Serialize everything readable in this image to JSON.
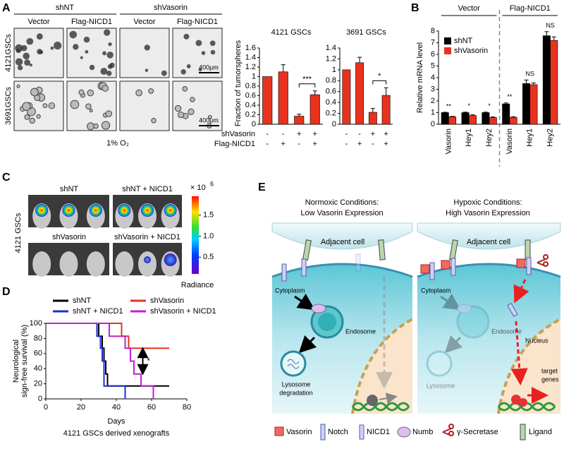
{
  "panel_labels": [
    "A",
    "B",
    "C",
    "D",
    "E"
  ],
  "panel_a": {
    "groups": [
      "shNT",
      "shVasorin"
    ],
    "columns": [
      "Vector",
      "Flag-NICD1",
      "Vector",
      "Flag-NICD1"
    ],
    "rows": [
      "4121GSCs",
      "3691GSCs"
    ],
    "scale_bar": "400μm",
    "condition": "1% O₂"
  },
  "panel_c": {
    "cell_line": "4121 GSCs",
    "groups": [
      "shNT",
      "shNT + NICD1",
      "shVasorin",
      "shVasorin + NICD1"
    ],
    "colorbar": {
      "lim": [
        0.1,
        1.95
      ],
      "ticks": [
        1.5,
        {
          "value": 1,
          "label": "1.0"
        },
        0.5
      ],
      "multiplier": "× 10",
      "exponent": "6",
      "label": "Radiance"
    }
  },
  "panel_e": {
    "normoxic": [
      "Normoxic Conditions:",
      "Low Vasorin Expression"
    ],
    "hypoxic": [
      "Hypoxic Conditions:",
      "High Vasorin Expression"
    ],
    "adjacent_cell": "Adjacent cell",
    "cytoplasm": "Cytoplasm",
    "endosome": "Endosome",
    "lysosome_degradation": [
      "Lysosome",
      "degradation"
    ],
    "lysosome": "Lysosome",
    "nucleus": "Nucleus",
    "target_genes": [
      "target",
      "genes"
    ],
    "legend": [
      "Vasorin",
      "Notch",
      "NICD1",
      "Numb",
      "γ-Secretase",
      "Ligand"
    ]
  },
  "chart_data": [
    {
      "type": "bar",
      "title": "4121 GSCs",
      "ylabel": "Fraction of tumorspheres",
      "color": "#e8321e",
      "values": [
        1,
        1.1,
        0.17,
        0.62
      ],
      "errors": [
        null,
        0.15,
        0.04,
        0.08
      ],
      "ylim": [
        0,
        1.6
      ],
      "yticks": [
        0,
        0.2,
        0.4,
        0.6,
        0.8,
        1,
        1.2,
        1.4,
        1.6
      ],
      "condition_labels": [
        "shVasorin",
        "Flag-NICD1"
      ],
      "conditions": [
        [
          "-",
          "-",
          "+",
          "+"
        ],
        [
          "-",
          "+",
          "-",
          "+"
        ]
      ],
      "significance": "***"
    },
    {
      "type": "bar",
      "title": "3691 GSCs",
      "color": "#e8321e",
      "values": [
        1,
        1.13,
        0.22,
        0.53
      ],
      "errors": [
        null,
        0.1,
        0.07,
        0.14
      ],
      "ylim": [
        0,
        1.4
      ],
      "yticks": [
        0,
        0.2,
        0.4,
        0.6,
        0.8,
        1,
        1.2,
        1.4
      ],
      "conditions": [
        [
          "-",
          "-",
          "+",
          "+"
        ],
        [
          "-",
          "+",
          "-",
          "+"
        ]
      ],
      "significance": "*"
    },
    {
      "type": "grouped_bar",
      "ylabel": "Relative mRNA level",
      "group_labels": [
        "Vector",
        "Flag-NICD1"
      ],
      "categories": [
        "Vasorin",
        "Hey1",
        "Hey2",
        "Vasorin",
        "Hey1",
        "Hey2"
      ],
      "series": [
        {
          "name": "shNT",
          "color": "#000000",
          "values": [
            1,
            1,
            1,
            1.75,
            3.5,
            7.6
          ],
          "errors": [
            0.03,
            0.04,
            0.04,
            0.08,
            0.3,
            0.35
          ]
        },
        {
          "name": "shVasorin",
          "color": "#e8321e",
          "values": [
            0.65,
            0.75,
            0.58,
            0.6,
            3.4,
            7.2
          ],
          "errors": [
            0.03,
            0.06,
            0.05,
            0.05,
            0.15,
            0.3
          ]
        }
      ],
      "significance": [
        "**",
        "*",
        "*",
        "**",
        "NS",
        "NS"
      ],
      "ylim": [
        0,
        8
      ],
      "yticks": [
        0,
        1,
        2,
        3,
        4,
        5,
        6,
        7,
        8
      ],
      "legend": "upper left"
    },
    {
      "type": "line",
      "xlabel": "Days",
      "ylabel": [
        "Neurological",
        "sign-free survival (%)"
      ],
      "caption": "4121 GSCs derived xenografts",
      "xlim": [
        0,
        80
      ],
      "xticks": [
        0,
        20,
        40,
        60,
        80
      ],
      "ylim": [
        0,
        100
      ],
      "yticks": [
        0,
        20,
        40,
        60,
        80,
        100
      ],
      "annotation": "*",
      "series": [
        {
          "name": "shNT",
          "color": "#000000",
          "x": [
            0,
            30,
            30,
            32,
            32,
            33,
            33,
            34,
            34,
            35,
            35,
            70
          ],
          "values": [
            100,
            100,
            83,
            83,
            67,
            67,
            50,
            50,
            33,
            33,
            17,
            17
          ]
        },
        {
          "name": "shVasorin",
          "color": "#e8321e",
          "x": [
            0,
            43,
            43,
            47,
            47,
            70
          ],
          "values": [
            100,
            100,
            83,
            83,
            67,
            67
          ]
        },
        {
          "name": "shNT + NICD1",
          "color": "#1f2fd0",
          "x": [
            0,
            29,
            29,
            31,
            31,
            32,
            32,
            33,
            33,
            45,
            45
          ],
          "values": [
            100,
            100,
            83,
            83,
            67,
            67,
            50,
            50,
            17,
            17,
            0
          ]
        },
        {
          "name": "shVasorin + NICD1",
          "color": "#c020d0",
          "x": [
            0,
            36,
            36,
            45,
            45,
            48,
            48,
            50,
            50,
            54,
            54,
            61,
            61
          ],
          "values": [
            100,
            100,
            83,
            83,
            67,
            67,
            50,
            50,
            33,
            33,
            17,
            17,
            0
          ]
        }
      ]
    }
  ]
}
